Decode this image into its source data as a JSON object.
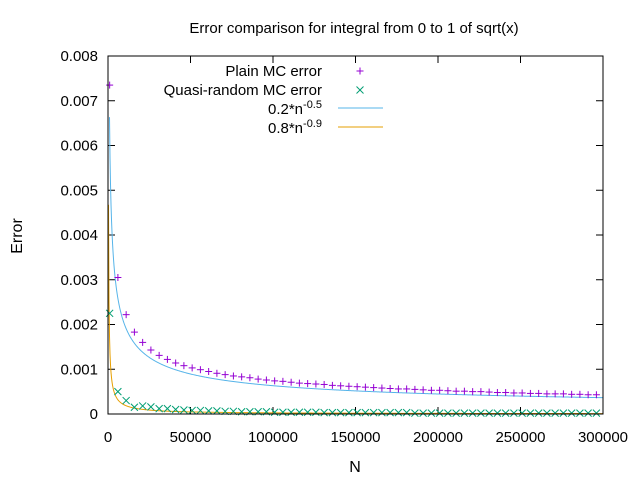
{
  "chart_data": {
    "type": "scatter",
    "title": "Error comparison for integral from 0 to 1 of sqrt(x)",
    "xlabel": "N",
    "ylabel": "Error",
    "xlim": [
      0,
      300000
    ],
    "ylim": [
      0,
      0.008
    ],
    "xticks": [
      0,
      50000,
      100000,
      150000,
      200000,
      250000,
      300000
    ],
    "yticks": [
      0,
      0.001,
      0.002,
      0.003,
      0.004,
      0.005,
      0.006,
      0.007,
      0.008
    ],
    "xtick_labels": [
      "0",
      "50000",
      "100000",
      "150000",
      "200000",
      "250000",
      "300000"
    ],
    "ytick_labels": [
      "0",
      "0.001",
      "0.002",
      "0.003",
      "0.004",
      "0.005",
      "0.006",
      "0.007",
      "0.008"
    ],
    "grid": false,
    "legend_position": "top-right",
    "legend": {
      "plain": "Plain MC error",
      "quasi": "Quasi-random MC error",
      "fit1_base": "0.2*n",
      "fit1_exp": "-0.5",
      "fit2_base": "0.8*n",
      "fit2_exp": "-0.9"
    },
    "series": [
      {
        "name": "Plain MC error",
        "kind": "points",
        "marker": "plus",
        "color": "#9400d3",
        "x": [
          1000,
          6000,
          11000,
          16000,
          21000,
          26000,
          31000,
          36000,
          41000,
          46000,
          51000,
          56000,
          61000,
          66000,
          71000,
          76000,
          81000,
          86000,
          91000,
          96000,
          101000,
          106000,
          111000,
          116000,
          121000,
          126000,
          131000,
          136000,
          141000,
          146000,
          151000,
          156000,
          161000,
          166000,
          171000,
          176000,
          181000,
          186000,
          191000,
          196000,
          201000,
          206000,
          211000,
          216000,
          221000,
          226000,
          231000,
          236000,
          241000,
          246000,
          251000,
          256000,
          261000,
          266000,
          271000,
          276000,
          281000,
          286000,
          291000,
          296000
        ],
        "y": [
          0.00735,
          0.00305,
          0.00222,
          0.00183,
          0.0016,
          0.00143,
          0.00131,
          0.00122,
          0.00114,
          0.00108,
          0.00103,
          0.00099,
          0.00095,
          0.00091,
          0.00088,
          0.00085,
          0.00083,
          0.00081,
          0.00078,
          0.00076,
          0.00074,
          0.00073,
          0.00071,
          0.00069,
          0.00068,
          0.00067,
          0.00066,
          0.00064,
          0.00063,
          0.00062,
          0.00061,
          0.0006,
          0.00059,
          0.00058,
          0.00057,
          0.00056,
          0.00056,
          0.00055,
          0.00054,
          0.00053,
          0.00053,
          0.00052,
          0.00051,
          0.00051,
          0.0005,
          0.0005,
          0.00049,
          0.00048,
          0.00048,
          0.00047,
          0.00047,
          0.00046,
          0.00046,
          0.00045,
          0.00045,
          0.00045,
          0.00044,
          0.00044,
          0.00043,
          0.00043
        ]
      },
      {
        "name": "Quasi-random MC error",
        "kind": "points",
        "marker": "cross",
        "color": "#009e73",
        "x": [
          1000,
          6000,
          11000,
          16000,
          21000,
          26000,
          31000,
          36000,
          41000,
          46000,
          51000,
          56000,
          61000,
          66000,
          71000,
          76000,
          81000,
          86000,
          91000,
          96000,
          101000,
          106000,
          111000,
          116000,
          121000,
          126000,
          131000,
          136000,
          141000,
          146000,
          151000,
          156000,
          161000,
          166000,
          171000,
          176000,
          181000,
          186000,
          191000,
          196000,
          201000,
          206000,
          211000,
          216000,
          221000,
          226000,
          231000,
          236000,
          241000,
          246000,
          251000,
          256000,
          261000,
          266000,
          271000,
          276000,
          281000,
          286000,
          291000,
          296000
        ],
        "y": [
          0.00225,
          0.0005,
          0.0003,
          0.00015,
          0.00018,
          0.00016,
          0.00012,
          0.00012,
          0.0001,
          9e-05,
          8e-05,
          8e-05,
          7e-05,
          7e-05,
          6e-05,
          6e-05,
          5e-05,
          5e-05,
          5e-05,
          5e-05,
          4e-05,
          4e-05,
          4e-05,
          4e-05,
          4e-05,
          4e-05,
          3e-05,
          3e-05,
          3e-05,
          3e-05,
          3e-05,
          3e-05,
          3e-05,
          3e-05,
          3e-05,
          3e-05,
          3e-05,
          2e-05,
          2e-05,
          2e-05,
          2e-05,
          2e-05,
          2e-05,
          2e-05,
          2e-05,
          2e-05,
          2e-05,
          2e-05,
          2e-05,
          2e-05,
          2e-05,
          2e-05,
          2e-05,
          2e-05,
          2e-05,
          2e-05,
          2e-05,
          2e-05,
          2e-05,
          2e-05
        ]
      },
      {
        "name": "0.2*n -0.5",
        "kind": "curve",
        "coefficient": 0.2,
        "exponent": -0.5,
        "color": "#56b4e9"
      },
      {
        "name": "0.8*n -0.9",
        "kind": "curve",
        "coefficient": 0.8,
        "exponent": -0.9,
        "color": "#e69f00"
      }
    ]
  }
}
